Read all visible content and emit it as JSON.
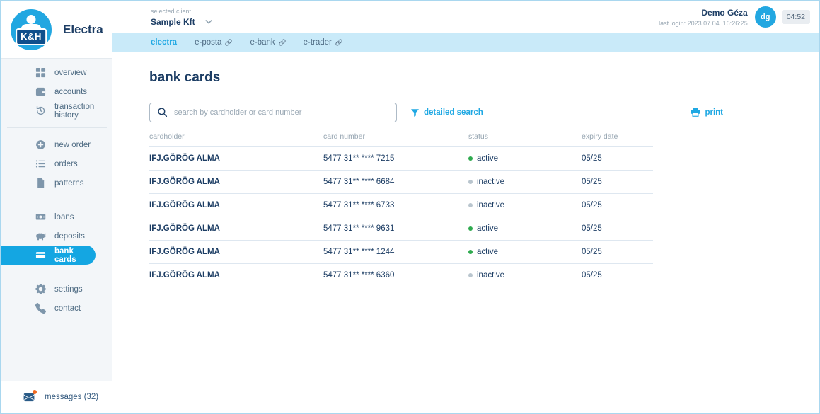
{
  "brand": {
    "logo_text": "K&H",
    "app_name": "Electra"
  },
  "header": {
    "client_label": "selected client",
    "client_value": "Sample Kft",
    "user_name": "Demo Géza",
    "last_login": "last login: 2023.07.04. 16:26:25",
    "avatar_initials": "dg",
    "session_timer": "04:52"
  },
  "tabs": [
    {
      "label": "electra",
      "active": true,
      "external": false
    },
    {
      "label": "e-posta",
      "active": false,
      "external": true
    },
    {
      "label": "e-bank",
      "active": false,
      "external": true
    },
    {
      "label": "e-trader",
      "active": false,
      "external": true
    }
  ],
  "sidebar": {
    "groups": [
      {
        "items": [
          {
            "icon": "grid-icon",
            "label": "overview"
          },
          {
            "icon": "wallet-icon",
            "label": "accounts"
          },
          {
            "icon": "history-icon",
            "label": "transaction history"
          }
        ]
      },
      {
        "items": [
          {
            "icon": "plus-circle-icon",
            "label": "new order"
          },
          {
            "icon": "list-icon",
            "label": "orders"
          },
          {
            "icon": "document-icon",
            "label": "patterns"
          }
        ]
      },
      {
        "items": [
          {
            "icon": "banknote-icon",
            "label": "loans"
          },
          {
            "icon": "piggy-bank-icon",
            "label": "deposits"
          },
          {
            "icon": "credit-card-icon",
            "label": "bank cards",
            "active": true
          }
        ]
      },
      {
        "items": [
          {
            "icon": "gear-icon",
            "label": "settings"
          },
          {
            "icon": "phone-icon",
            "label": "contact"
          }
        ]
      }
    ],
    "messages_label": "messages (32)"
  },
  "main": {
    "title": "bank cards",
    "search_placeholder": "search by cardholder or card number",
    "detailed_search_label": "detailed search",
    "print_label": "print",
    "table": {
      "columns": [
        "cardholder",
        "card number",
        "status",
        "expiry date"
      ],
      "rows": [
        {
          "cardholder": "IFJ.GÖRÖG ALMA",
          "card_number": "5477 31** **** 7215",
          "status": "active",
          "expiry": "05/25"
        },
        {
          "cardholder": "IFJ.GÖRÖG ALMA",
          "card_number": "5477 31** **** 6684",
          "status": "inactive",
          "expiry": "05/25"
        },
        {
          "cardholder": "IFJ.GÖRÖG ALMA",
          "card_number": "5477 31** **** 6733",
          "status": "inactive",
          "expiry": "05/25"
        },
        {
          "cardholder": "IFJ.GÖRÖG ALMA",
          "card_number": "5477 31** **** 9631",
          "status": "active",
          "expiry": "05/25"
        },
        {
          "cardholder": "IFJ.GÖRÖG ALMA",
          "card_number": "5477 31** **** 1244",
          "status": "active",
          "expiry": "05/25"
        },
        {
          "cardholder": "IFJ.GÖRÖG ALMA",
          "card_number": "5477 31** **** 6360",
          "status": "inactive",
          "expiry": "05/25"
        }
      ]
    }
  },
  "colors": {
    "accent": "#1FA8E3",
    "tab_strip_bg": "#C9EAF9",
    "navy_text": "#1C3D64",
    "status_active": "#2FAA4F",
    "status_inactive": "#B9C5CE",
    "alert_dot": "#F26A21"
  }
}
